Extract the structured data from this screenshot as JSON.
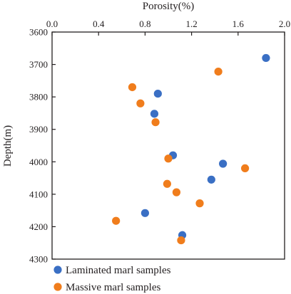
{
  "chart_data": {
    "type": "scatter",
    "title": "",
    "xlabel": "Porosity(%)",
    "ylabel": "Depth(m)",
    "xlim": [
      0.0,
      2.0
    ],
    "ylim": [
      3600,
      4300
    ],
    "y_inverted": true,
    "x_axis_position": "top",
    "x_ticks": [
      "0.0",
      "0.4",
      "0.8",
      "1.2",
      "1.6",
      "2.0"
    ],
    "y_ticks": [
      "3600",
      "3700",
      "3800",
      "3900",
      "4000",
      "4100",
      "4200",
      "4300"
    ],
    "grid": false,
    "legend_position": "bottom-left, below plot",
    "series": [
      {
        "name": "Laminated marl samples",
        "color": "#3a6fc4",
        "points": [
          {
            "x": 1.84,
            "y": 3680
          },
          {
            "x": 0.91,
            "y": 3790
          },
          {
            "x": 0.88,
            "y": 3852
          },
          {
            "x": 1.04,
            "y": 3980
          },
          {
            "x": 1.47,
            "y": 4006
          },
          {
            "x": 1.37,
            "y": 4055
          },
          {
            "x": 0.8,
            "y": 4158
          },
          {
            "x": 1.12,
            "y": 4226
          }
        ]
      },
      {
        "name": "Massive marl samples",
        "color": "#f07d1c",
        "points": [
          {
            "x": 1.43,
            "y": 3722
          },
          {
            "x": 0.69,
            "y": 3770
          },
          {
            "x": 0.76,
            "y": 3820
          },
          {
            "x": 0.89,
            "y": 3878
          },
          {
            "x": 1.0,
            "y": 3990
          },
          {
            "x": 1.66,
            "y": 4020
          },
          {
            "x": 0.99,
            "y": 4068
          },
          {
            "x": 1.07,
            "y": 4094
          },
          {
            "x": 1.27,
            "y": 4128
          },
          {
            "x": 0.55,
            "y": 4182
          },
          {
            "x": 1.11,
            "y": 4242
          }
        ]
      }
    ]
  }
}
